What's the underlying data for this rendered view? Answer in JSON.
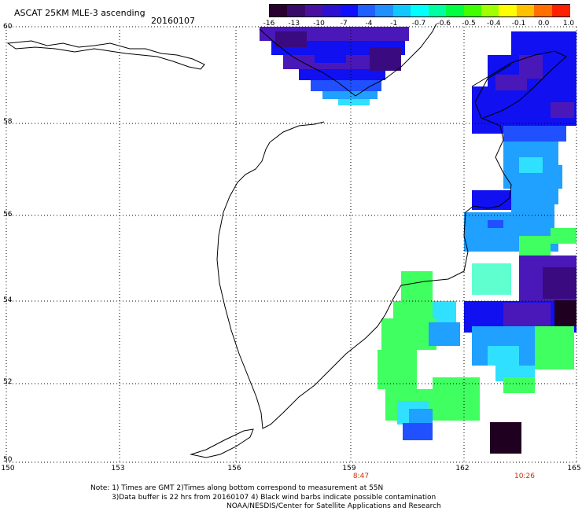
{
  "title": "ASCAT 25KM MLE-3 ascending",
  "date": "20160107",
  "colorbar": {
    "labels": [
      "-16",
      "-13",
      "-10",
      "-7",
      "-4",
      "-1",
      "-0.7",
      "-0.6",
      "-0.5",
      "-0.4",
      "-0.1",
      "0.0",
      "1.0"
    ],
    "colors": [
      "#2a0030",
      "#3a0a6a",
      "#4a10a0",
      "#3010d0",
      "#1010ff",
      "#2060ff",
      "#2090ff",
      "#10c8ff",
      "#00ffff",
      "#00ffa0",
      "#00ff40",
      "#40ff00",
      "#a0ff00",
      "#ffff00",
      "#ffc000",
      "#ff7000",
      "#ff2000"
    ]
  },
  "map": {
    "lon_range": [
      150,
      165
    ],
    "lat_range": [
      50,
      60
    ],
    "lat_labels": [
      "60",
      "58",
      "56",
      "54",
      "52",
      "50"
    ],
    "lon_labels": [
      "150",
      "153",
      "156",
      "159",
      "162",
      "165"
    ],
    "times": [
      {
        "label": "8:47",
        "lon": 159.4
      },
      {
        "label": "10:26",
        "lon": 163.6
      }
    ]
  },
  "notes": {
    "line1": "Note: 1) Times are GMT 2)Times along bottom correspond to measurement at 55N",
    "line2": "3)Data buffer is 22 hrs from 20160107 4) Black wind barbs indicate possible contamination",
    "line3": "NOAA/NESDIS/Center for Satellite Applications and Research"
  }
}
